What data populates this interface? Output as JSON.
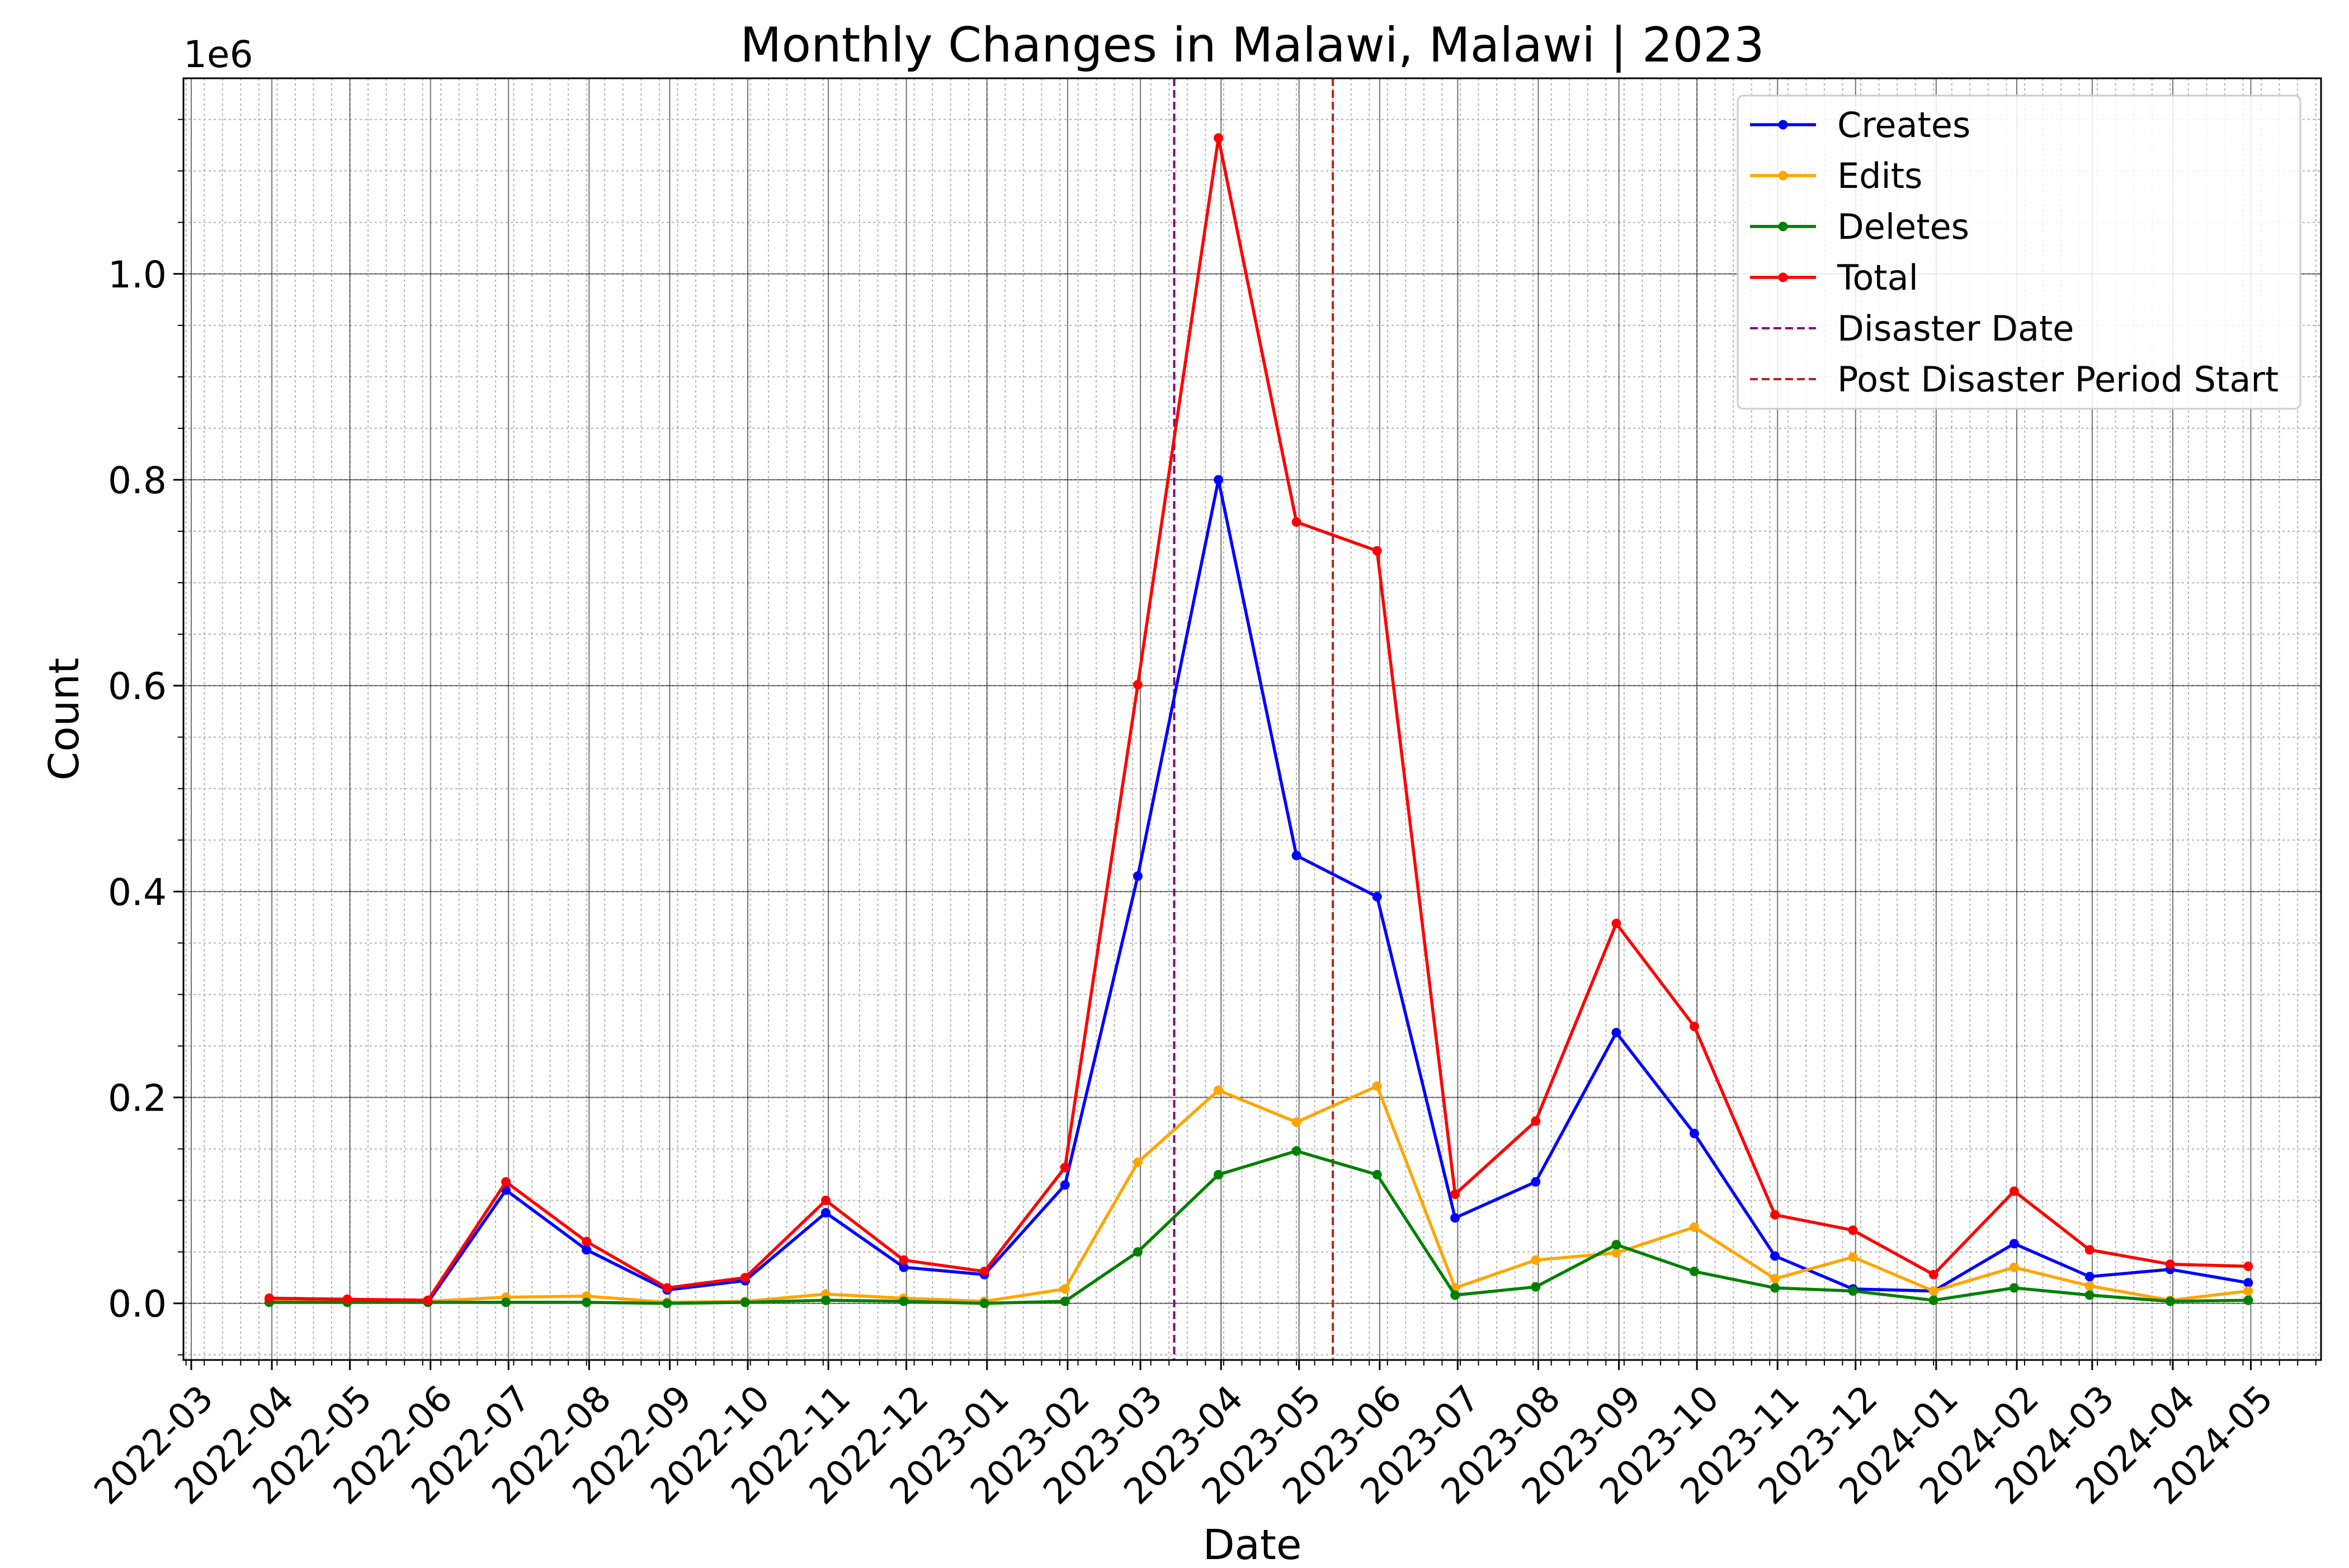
{
  "chart_data": {
    "type": "line",
    "title": "Monthly Changes in Malawi, Malawi | 2023",
    "xlabel": "Date",
    "ylabel": "Count",
    "y_offset_label": "1e6",
    "ylim": [
      -0.055,
      1.19
    ],
    "y_scale_factor": 1000000,
    "y_ticks": [
      0.0,
      0.2,
      0.4,
      0.6,
      0.8,
      1.0
    ],
    "y_tick_labels": [
      "0.0",
      "0.2",
      "0.4",
      "0.6",
      "0.8",
      "1.0"
    ],
    "xlim": [
      "2022-02-26",
      "2024-05-28"
    ],
    "x_ticks": [
      "2022-03",
      "2022-04",
      "2022-05",
      "2022-06",
      "2022-07",
      "2022-08",
      "2022-09",
      "2022-10",
      "2022-11",
      "2022-12",
      "2023-01",
      "2023-02",
      "2023-03",
      "2023-04",
      "2023-05",
      "2023-06",
      "2023-07",
      "2023-08",
      "2023-09",
      "2023-10",
      "2023-11",
      "2023-12",
      "2024-01",
      "2024-02",
      "2024-03",
      "2024-04",
      "2024-05"
    ],
    "grid": true,
    "legend_position": "top-right",
    "x": [
      "2022-03-31",
      "2022-04-30",
      "2022-05-31",
      "2022-06-30",
      "2022-07-31",
      "2022-08-31",
      "2022-09-30",
      "2022-10-31",
      "2022-11-30",
      "2022-12-31",
      "2023-01-31",
      "2023-02-28",
      "2023-03-31",
      "2023-04-30",
      "2023-05-31",
      "2023-06-30",
      "2023-07-31",
      "2023-08-31",
      "2023-09-30",
      "2023-10-31",
      "2023-11-30",
      "2023-12-31",
      "2024-01-31",
      "2024-02-29",
      "2024-03-31",
      "2024-04-30"
    ],
    "series": [
      {
        "name": "Creates",
        "color": "#0000ff",
        "values": [
          3000,
          2000,
          1000,
          110000,
          52000,
          13000,
          22000,
          88000,
          35000,
          28000,
          115000,
          415000,
          800000,
          435000,
          395000,
          83000,
          118000,
          263000,
          165000,
          46000,
          14000,
          12000,
          58000,
          26000,
          33000,
          20000
        ]
      },
      {
        "name": "Edits",
        "color": "#ffa500",
        "values": [
          2000,
          1000,
          2000,
          6000,
          7000,
          1000,
          2000,
          9000,
          5000,
          2000,
          14000,
          137000,
          207000,
          176000,
          211000,
          15000,
          42000,
          49000,
          74000,
          24000,
          45000,
          12000,
          35000,
          17000,
          3000,
          12000
        ]
      },
      {
        "name": "Deletes",
        "color": "#008000",
        "values": [
          1000,
          1000,
          1000,
          1000,
          1000,
          0,
          1000,
          3000,
          2000,
          0,
          2000,
          50000,
          125000,
          148000,
          125000,
          8000,
          16000,
          57000,
          31000,
          15000,
          12000,
          3000,
          15000,
          8000,
          2000,
          3000
        ]
      },
      {
        "name": "Total",
        "color": "#ff0000",
        "values": [
          5000,
          4000,
          3000,
          118000,
          60000,
          15000,
          25000,
          100000,
          42000,
          31000,
          132000,
          601000,
          1132000,
          759000,
          731000,
          106000,
          177000,
          369000,
          269000,
          86000,
          71000,
          28000,
          109000,
          52000,
          38000,
          36000
        ]
      }
    ],
    "vlines": [
      {
        "name": "Disaster Date",
        "date": "2023-03-14",
        "color": "#800080"
      },
      {
        "name": "Post Disaster Period Start",
        "date": "2023-05-14",
        "color": "#b22222"
      }
    ]
  }
}
